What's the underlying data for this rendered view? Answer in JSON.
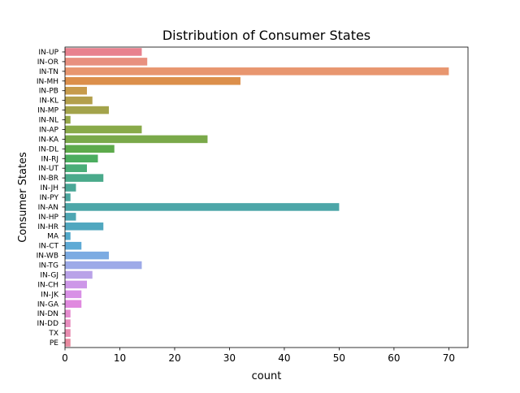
{
  "chart_data": {
    "type": "bar",
    "orientation": "horizontal",
    "title": "Distribution of Consumer States",
    "xlabel": "count",
    "ylabel": "Consumer States",
    "xlim": [
      0,
      73.5
    ],
    "xticks": [
      0,
      10,
      20,
      30,
      40,
      50,
      60,
      70
    ],
    "grid": false,
    "legend": "none",
    "categories": [
      "IN-UP",
      "IN-OR",
      "IN-TN",
      "IN-MH",
      "IN-PB",
      "IN-KL",
      "IN-MP",
      "IN-NL",
      "IN-AP",
      "IN-KA",
      "IN-DL",
      "IN-RJ",
      "IN-UT",
      "IN-BR",
      "IN-JH",
      "IN-PY",
      "IN-AN",
      "IN-HP",
      "IN-HR",
      "MA",
      "IN-CT",
      "IN-WB",
      "IN-TG",
      "IN-GJ",
      "IN-CH",
      "IN-JK",
      "IN-GA",
      "IN-DN",
      "IN-DD",
      "TX",
      "PE"
    ],
    "values": [
      14,
      15,
      70,
      32,
      4,
      5,
      8,
      1,
      14,
      26,
      9,
      6,
      4,
      7,
      2,
      1,
      50,
      2,
      7,
      1,
      3,
      8,
      14,
      5,
      4,
      3,
      3,
      1,
      1,
      1,
      1
    ],
    "colors": [
      "#e8818e",
      "#e8907f",
      "#e8966f",
      "#dc8f4b",
      "#c79b4b",
      "#b39f4b",
      "#a3a34b",
      "#95a84a",
      "#89aa49",
      "#7aa94a",
      "#5daa4b",
      "#4bad5f",
      "#4aad78",
      "#4aaa8b",
      "#4aa797",
      "#4ba69f",
      "#4ca6a8",
      "#4ea6b3",
      "#50a7bf",
      "#52a9ca",
      "#5eaad5",
      "#7cabe2",
      "#9daae8",
      "#b9a2e8",
      "#cd97e8",
      "#d890e6",
      "#e089df",
      "#e58bcf",
      "#e88dbf",
      "#e88cb0",
      "#e88aa0"
    ]
  }
}
